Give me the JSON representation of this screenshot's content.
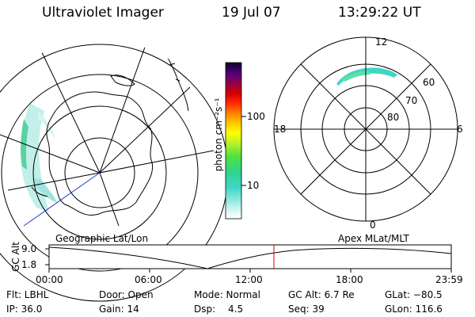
{
  "header": {
    "instrument": "Ultraviolet Imager",
    "date": "19 Jul 07",
    "time": "13:29:22 UT"
  },
  "colorbar": {
    "unit_label": "photon cm⁻²s⁻¹",
    "ticks": [
      "100",
      "10"
    ]
  },
  "polar_plot": {
    "labels": [
      "12",
      "18",
      "6",
      "0",
      "60",
      "70",
      "80"
    ]
  },
  "timeline": {
    "left_title": "Geographic Lat/Lon",
    "right_title": "Apex MLat/MLT",
    "axis_label": "GC Alt",
    "y_ticks": [
      "9.0",
      "1.8"
    ],
    "x_ticks": [
      "00:00",
      "06:00",
      "12:00",
      "18:00",
      "23:59"
    ],
    "marker_time": "13:29:22"
  },
  "info": {
    "row1": {
      "filter": "Flt: LBHL",
      "door": "Door: Open",
      "mode": "Mode: Normal",
      "gc_alt": "GC Alt: 6.7 Re",
      "glat": "GLat: −80.5"
    },
    "row2": {
      "ip": "IP: 36.0",
      "gain": "Gain: 14",
      "dsp_label": "Dsp:",
      "dsp_value": "4.5",
      "seq": "Seq: 39",
      "glon": "GLon: 116.6"
    }
  }
}
